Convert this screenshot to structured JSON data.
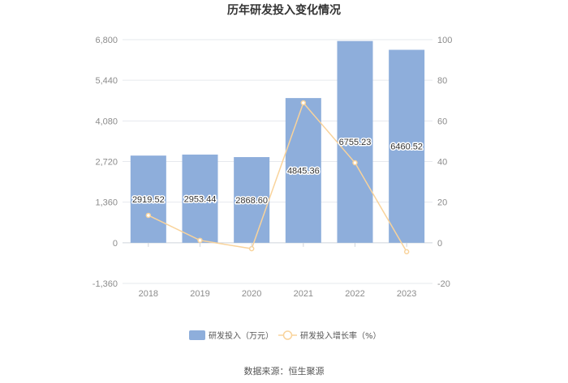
{
  "source_label": "数据来源：恒生聚源",
  "chart_data": {
    "type": "bar",
    "title": "历年研发投入变化情况",
    "categories": [
      "2018",
      "2019",
      "2020",
      "2021",
      "2022",
      "2023"
    ],
    "series": [
      {
        "name": "研发投入（万元）",
        "type": "bar",
        "axis": "left",
        "color": "#8eaedb",
        "values": [
          2919.52,
          2953.44,
          2868.6,
          4845.36,
          6755.23,
          6460.52
        ],
        "labels": [
          "2919.52",
          "2953.44",
          "2868.60",
          "4845.36",
          "6755.23",
          "6460.52"
        ]
      },
      {
        "name": "研发投入增长率（%）",
        "type": "line",
        "axis": "right",
        "color": "#f9d39b",
        "values": [
          13.5,
          1.2,
          -2.9,
          68.9,
          39.4,
          -4.4
        ]
      }
    ],
    "y_left": {
      "min": -1360,
      "max": 6800,
      "ticks": [
        -1360,
        0,
        1360,
        2720,
        4080,
        5440,
        6800
      ],
      "tick_labels": [
        "-1,360",
        "0",
        "1,360",
        "2,720",
        "4,080",
        "5,440",
        "6,800"
      ]
    },
    "y_right": {
      "min": -20,
      "max": 100,
      "ticks": [
        -20,
        0,
        20,
        40,
        60,
        80,
        100
      ],
      "tick_labels": [
        "-20",
        "0",
        "20",
        "40",
        "60",
        "80",
        "100"
      ]
    },
    "grid": true,
    "legend_position": "bottom"
  }
}
